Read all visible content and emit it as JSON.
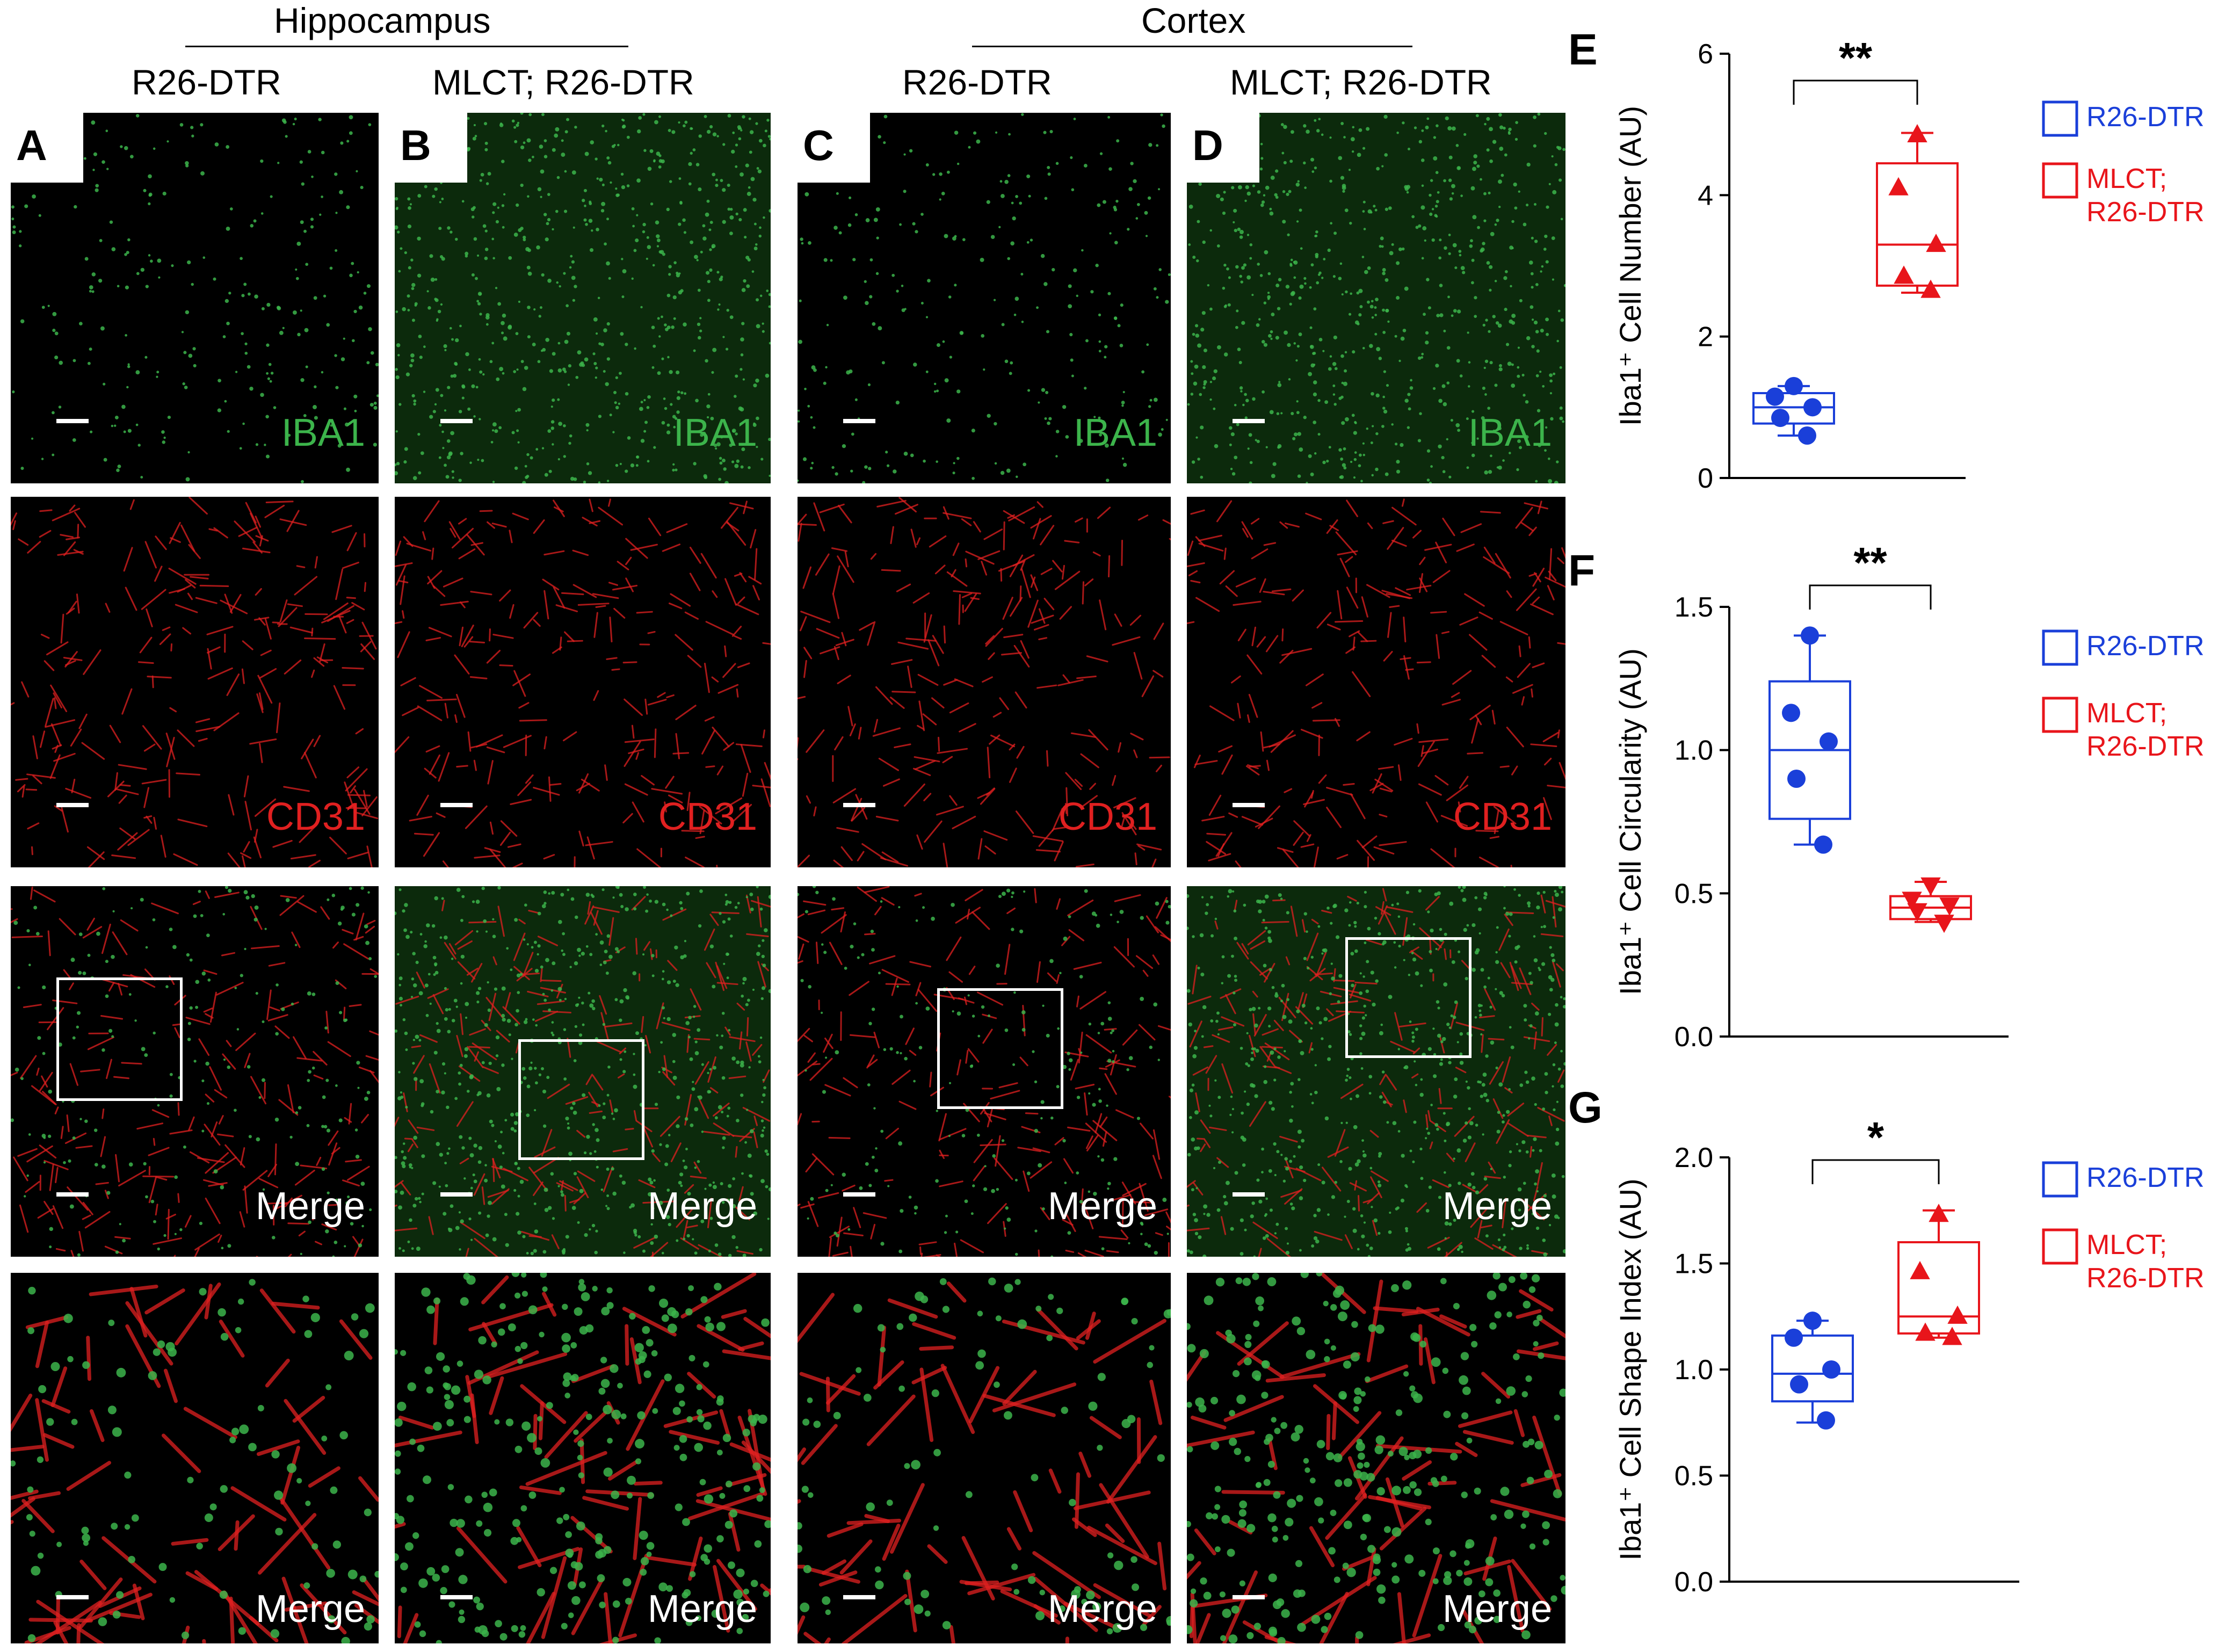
{
  "figure": {
    "groups": [
      {
        "label": "Hippocampus"
      },
      {
        "label": "Cortex"
      }
    ],
    "columns": [
      {
        "letter": "A",
        "header": "R26-DTR"
      },
      {
        "letter": "B",
        "header": "MLCT; R26-DTR"
      },
      {
        "letter": "C",
        "header": "R26-DTR"
      },
      {
        "letter": "D",
        "header": "MLCT; R26-DTR"
      }
    ],
    "row_labels": {
      "iba1": "IBA1",
      "cd31": "CD31",
      "merge": "Merge"
    },
    "colors": {
      "iba1": "#3cb44b",
      "cd31": "#e02020",
      "control": "#1a3fd9",
      "mutant": "#e8151b"
    }
  },
  "chart_data": [
    {
      "panel": "E",
      "type": "box",
      "ylabel": "Iba1⁺ Cell Number (AU)",
      "ylim": [
        0,
        6
      ],
      "yticks": [
        "0",
        "2",
        "4",
        "6"
      ],
      "significance": "**",
      "series": [
        {
          "name": "R26-DTR",
          "marker": "circle",
          "points": [
            1.3,
            1.15,
            1.0,
            0.85,
            0.6
          ],
          "box": {
            "min": 0.6,
            "q1": 0.77,
            "median": 1.0,
            "q3": 1.2,
            "max": 1.3
          }
        },
        {
          "name": "MLCT; R26-DTR",
          "marker": "triangle-up",
          "points": [
            4.85,
            4.1,
            3.3,
            2.85,
            2.65
          ],
          "box": {
            "min": 2.62,
            "q1": 2.72,
            "median": 3.3,
            "q3": 4.45,
            "max": 4.88
          }
        }
      ],
      "legend": [
        "R26-DTR",
        "MLCT;\nR26-DTR"
      ]
    },
    {
      "panel": "F",
      "type": "box",
      "ylabel": "Iba1⁺ Cell Circularity (AU)",
      "ylim": [
        0,
        1.5
      ],
      "yticks": [
        "0.0",
        "0.5",
        "1.0",
        "1.5"
      ],
      "significance": "**",
      "series": [
        {
          "name": "R26-DTR",
          "marker": "circle",
          "points": [
            1.4,
            1.13,
            1.03,
            0.9,
            0.67
          ],
          "box": {
            "min": 0.67,
            "q1": 0.76,
            "median": 1.0,
            "q3": 1.24,
            "max": 1.4
          }
        },
        {
          "name": "MLCT; R26-DTR",
          "marker": "triangle-down",
          "points": [
            0.53,
            0.48,
            0.46,
            0.44,
            0.4
          ],
          "box": {
            "min": 0.4,
            "q1": 0.41,
            "median": 0.45,
            "q3": 0.49,
            "max": 0.54
          }
        }
      ],
      "legend": [
        "R26-DTR",
        "MLCT;\nR26-DTR"
      ]
    },
    {
      "panel": "G",
      "type": "box",
      "ylabel": "Iba1⁺ Cell Shape Index (AU)",
      "ylim": [
        0,
        2.0
      ],
      "yticks": [
        "0.0",
        "0.5",
        "1.0",
        "1.5",
        "2.0"
      ],
      "significance": "*",
      "series": [
        {
          "name": "R26-DTR",
          "marker": "circle",
          "points": [
            1.23,
            1.15,
            1.0,
            0.93,
            0.76
          ],
          "box": {
            "min": 0.75,
            "q1": 0.85,
            "median": 0.98,
            "q3": 1.16,
            "max": 1.23
          }
        },
        {
          "name": "MLCT; R26-DTR",
          "marker": "triangle-up",
          "points": [
            1.73,
            1.46,
            1.25,
            1.17,
            1.15
          ],
          "box": {
            "min": 1.15,
            "q1": 1.17,
            "median": 1.25,
            "q3": 1.6,
            "max": 1.75
          }
        }
      ],
      "legend": [
        "R26-DTR",
        "MLCT;\nR26-DTR"
      ]
    }
  ]
}
